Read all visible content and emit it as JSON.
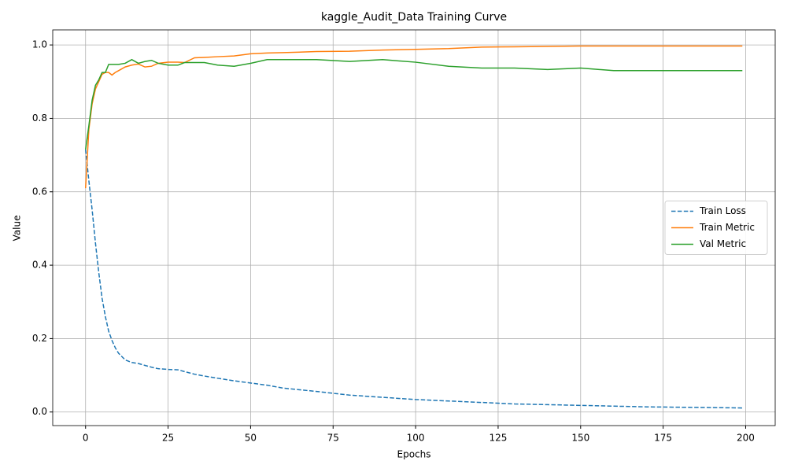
{
  "chart_data": {
    "type": "line",
    "title": "kaggle_Audit_Data Training Curve",
    "x_label": "Epochs",
    "y_label": "Value",
    "x": [
      0,
      1,
      2,
      3,
      4,
      5,
      6,
      7,
      8,
      9,
      10,
      12,
      14,
      16,
      18,
      20,
      22,
      25,
      28,
      30,
      33,
      36,
      40,
      45,
      50,
      55,
      60,
      70,
      80,
      90,
      100,
      110,
      120,
      130,
      140,
      150,
      160,
      170,
      180,
      190,
      199
    ],
    "series": [
      {
        "name": "Train Loss",
        "color": "#1f77b4",
        "dashed": true,
        "values": [
          0.715,
          0.63,
          0.55,
          0.46,
          0.38,
          0.31,
          0.26,
          0.22,
          0.195,
          0.175,
          0.16,
          0.142,
          0.135,
          0.132,
          0.127,
          0.122,
          0.118,
          0.116,
          0.115,
          0.11,
          0.103,
          0.098,
          0.092,
          0.085,
          0.079,
          0.073,
          0.065,
          0.056,
          0.046,
          0.04,
          0.034,
          0.03,
          0.026,
          0.022,
          0.02,
          0.018,
          0.016,
          0.014,
          0.013,
          0.012,
          0.011
        ]
      },
      {
        "name": "Train Metric",
        "color": "#ff7f0e",
        "values": [
          0.61,
          0.77,
          0.84,
          0.88,
          0.9,
          0.92,
          0.925,
          0.925,
          0.918,
          0.925,
          0.93,
          0.94,
          0.945,
          0.948,
          0.94,
          0.942,
          0.95,
          0.953,
          0.953,
          0.952,
          0.965,
          0.966,
          0.968,
          0.97,
          0.976,
          0.978,
          0.979,
          0.982,
          0.983,
          0.986,
          0.988,
          0.99,
          0.994,
          0.995,
          0.996,
          0.997,
          0.997,
          0.997,
          0.997,
          0.997,
          0.997
        ]
      },
      {
        "name": "Val Metric",
        "color": "#2ca02c",
        "values": [
          0.715,
          0.78,
          0.85,
          0.89,
          0.905,
          0.925,
          0.925,
          0.947,
          0.947,
          0.947,
          0.947,
          0.95,
          0.96,
          0.95,
          0.955,
          0.958,
          0.95,
          0.945,
          0.945,
          0.952,
          0.952,
          0.952,
          0.945,
          0.942,
          0.95,
          0.96,
          0.96,
          0.96,
          0.955,
          0.96,
          0.953,
          0.942,
          0.937,
          0.937,
          0.933,
          0.937,
          0.93,
          0.93,
          0.93,
          0.93,
          0.93
        ]
      }
    ],
    "xlim": [
      -9.95,
      208.95
    ],
    "xticks": [
      0,
      25,
      50,
      75,
      100,
      125,
      150,
      175,
      200
    ],
    "ylim": [
      -0.037,
      1.041
    ],
    "yticks": [
      {
        "value": 0,
        "label": "0.0"
      },
      {
        "value": 0.2,
        "label": "0.2"
      },
      {
        "value": 0.4,
        "label": "0.4"
      },
      {
        "value": 0.6,
        "label": "0.6"
      },
      {
        "value": 0.8,
        "label": "0.8"
      },
      {
        "value": 1,
        "label": "1.0"
      }
    ],
    "grid": true,
    "legend": "center right"
  }
}
